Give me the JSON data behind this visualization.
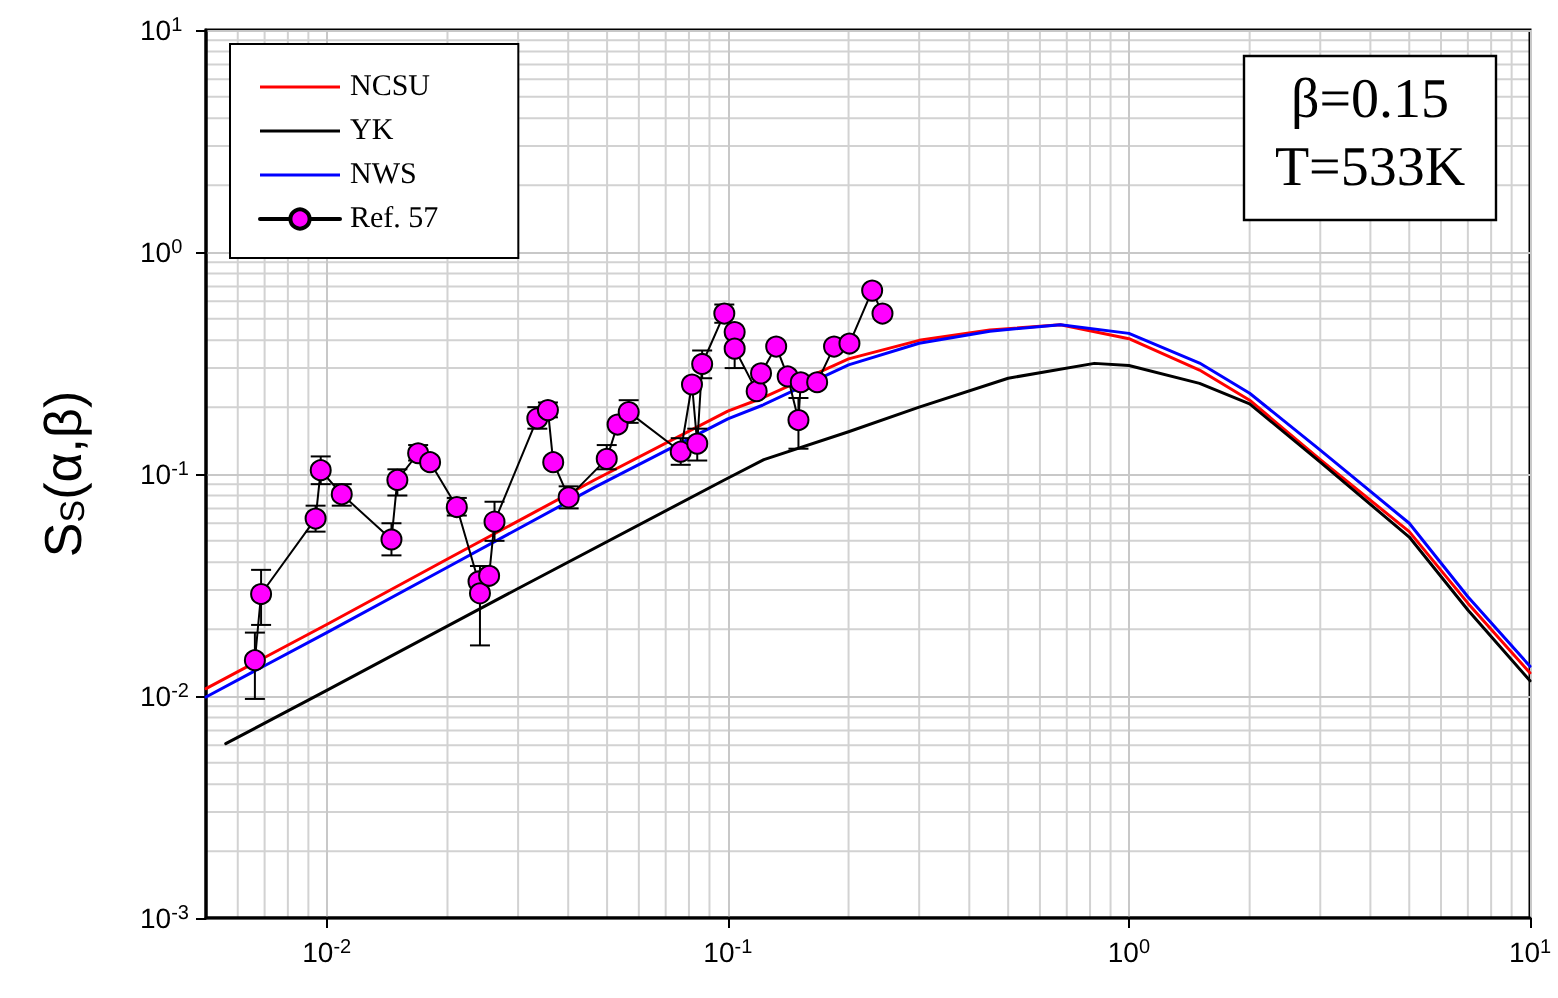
{
  "chart_data": {
    "type": "line",
    "ylabel": "S$_{S}$(α,β)",
    "annotations": [
      "β=0.15",
      "T=533K"
    ],
    "log": "xy",
    "grid": true,
    "legend": "top left",
    "xlim": [
      0.005,
      10
    ],
    "ylim": [
      0.001,
      10
    ],
    "xticks": [
      {
        "value": 0.01,
        "label": "10$^{-2}$"
      },
      {
        "value": 0.1,
        "label": "10$^{-1}$"
      },
      {
        "value": 1,
        "label": "10$^{0}$"
      },
      {
        "value": 10,
        "label": "10$^{1}$"
      }
    ],
    "yticks": [
      {
        "value": 0.001,
        "label": "10$^{-3}$"
      },
      {
        "value": 0.01,
        "label": "10$^{-2}$"
      },
      {
        "value": 0.1,
        "label": "10$^{-1}$"
      },
      {
        "value": 1,
        "label": "10$^{0}$"
      },
      {
        "value": 10,
        "label": "10$^{1}$"
      }
    ],
    "series": [
      {
        "name": "NCSU",
        "color": "#ff0000",
        "marker": "none",
        "x": [
          0.005,
          0.01,
          0.02,
          0.0465,
          0.1,
          0.122,
          0.2,
          0.3,
          0.45,
          0.675,
          1,
          1.5,
          2,
          3,
          5,
          7,
          10
        ],
        "values": [
          0.0108,
          0.021,
          0.0414,
          0.094,
          0.192,
          0.22,
          0.33,
          0.4,
          0.445,
          0.47,
          0.407,
          0.294,
          0.215,
          0.116,
          0.055,
          0.0262,
          0.0127
        ]
      },
      {
        "name": "YK",
        "color": "#000000",
        "marker": "none",
        "x": [
          0.0056,
          0.01,
          0.03,
          0.098,
          0.123,
          0.2,
          0.3,
          0.5,
          0.82,
          1,
          1.5,
          2,
          3,
          5,
          7,
          10
        ],
        "values": [
          0.0061,
          0.0106,
          0.0305,
          0.094,
          0.116,
          0.155,
          0.2,
          0.27,
          0.315,
          0.308,
          0.256,
          0.207,
          0.113,
          0.052,
          0.0244,
          0.0117
        ]
      },
      {
        "name": "NWS",
        "color": "#0000ff",
        "marker": "none",
        "x": [
          0.005,
          0.01,
          0.02,
          0.0465,
          0.1,
          0.122,
          0.2,
          0.3,
          0.45,
          0.675,
          1,
          1.5,
          2,
          3,
          5,
          7,
          10
        ],
        "values": [
          0.0099,
          0.0193,
          0.038,
          0.087,
          0.177,
          0.204,
          0.31,
          0.388,
          0.44,
          0.47,
          0.43,
          0.316,
          0.231,
          0.128,
          0.06,
          0.028,
          0.0136
        ]
      },
      {
        "name": "Ref. 57",
        "color": "#ff00ff",
        "marker": "circle",
        "x": [
          0.00662,
          0.00686,
          0.00938,
          0.00966,
          0.0109,
          0.0145,
          0.015,
          0.0169,
          0.0181,
          0.0211,
          0.0239,
          0.0241,
          0.0254,
          0.0262,
          0.0335,
          0.0356,
          0.0367,
          0.0401,
          0.0499,
          0.0531,
          0.0566,
          0.0763,
          0.0814,
          0.0839,
          0.0863,
          0.098,
          0.104,
          0.104,
          0.118,
          0.121,
          0.132,
          0.141,
          0.15,
          0.152,
          0.167,
          0.184,
          0.201,
          0.229,
          0.243
        ],
        "values": [
          0.0145,
          0.0288,
          0.063,
          0.104,
          0.081,
          0.0507,
          0.094,
          0.124,
          0.113,
          0.071,
          0.0328,
          0.029,
          0.0348,
          0.061,
          0.178,
          0.194,
          0.113,
          0.0785,
          0.117,
          0.167,
          0.19,
          0.126,
          0.253,
          0.137,
          0.313,
          0.528,
          0.436,
          0.367,
          0.236,
          0.284,
          0.375,
          0.275,
          0.175,
          0.259,
          0.259,
          0.375,
          0.387,
          0.67,
          0.528
        ],
        "errors": [
          [
            0.0097,
            0.0193
          ],
          [
            0.0209,
            0.037
          ],
          [
            0.055,
            0.072
          ],
          [
            0.09,
            0.12
          ],
          [
            0.072,
            0.09
          ],
          [
            0.043,
            0.06
          ],
          [
            0.08,
            0.105
          ],
          [
            0.115,
            0.135
          ],
          null,
          [
            0.065,
            0.078
          ],
          null,
          [
            0.0169,
            0.0385
          ],
          null,
          [
            0.05,
            0.075
          ],
          [
            0.16,
            0.2
          ],
          [
            0.18,
            0.21
          ],
          null,
          [
            0.07,
            0.088
          ],
          [
            0.105,
            0.135
          ],
          null,
          [
            0.17,
            0.215
          ],
          [
            0.11,
            0.145
          ],
          null,
          [
            0.115,
            0.16
          ],
          [
            0.27,
            0.36
          ],
          [
            0.48,
            0.58
          ],
          null,
          [
            0.3,
            0.42
          ],
          null,
          null,
          null,
          null,
          [
            0.13,
            0.22
          ],
          null,
          null,
          null,
          null,
          null,
          null
        ]
      }
    ]
  }
}
